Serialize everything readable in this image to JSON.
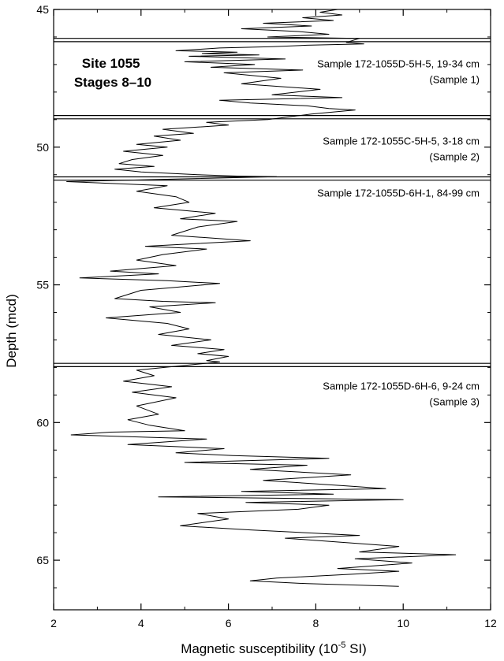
{
  "chart_data": {
    "type": "line",
    "title": "",
    "xlabel": "Magnetic susceptibility (10",
    "xlabel_sup": "-5",
    "xlabel_suffix": " SI)",
    "ylabel": "Depth (mcd)",
    "xlim": [
      2,
      12
    ],
    "ylim": [
      66.8,
      45
    ],
    "y_inverted": true,
    "grid": false,
    "xticks": [
      2,
      4,
      6,
      8,
      10,
      12
    ],
    "yticks": [
      45,
      50,
      55,
      60,
      65
    ],
    "xtick_labels": [
      "2",
      "4",
      "6",
      "8",
      "10",
      "12"
    ],
    "ytick_labels": [
      "45",
      "50",
      "55",
      "60",
      "65"
    ],
    "site_label": [
      "Site 1055",
      "Stages 8–10"
    ],
    "boundaries": [
      [
        46.05,
        46.17
      ],
      [
        48.85,
        48.97
      ],
      [
        51.08,
        51.2
      ],
      [
        57.85,
        57.97
      ]
    ],
    "annotations": [
      {
        "lines": [
          "Sample 172-1055D-5H-5, 19-34 cm",
          "(Sample 1)"
        ],
        "y": 47.1
      },
      {
        "lines": [
          "Sample 172-1055C-5H-5, 3-18 cm",
          "(Sample 2)"
        ],
        "y": 49.9
      },
      {
        "lines": [
          "Sample 172-1055D-6H-1, 84-99 cm"
        ],
        "y": 51.8
      },
      {
        "lines": [
          "Sample 172-1055D-6H-6, 9-24 cm",
          "(Sample 3)"
        ],
        "y": 58.8
      }
    ],
    "series": [
      {
        "values": [
          [
            8.5,
            45.0
          ],
          [
            8.1,
            45.1
          ],
          [
            8.6,
            45.2
          ],
          [
            7.7,
            45.3
          ],
          [
            8.4,
            45.4
          ],
          [
            6.8,
            45.5
          ],
          [
            7.9,
            45.6
          ],
          [
            6.3,
            45.7
          ],
          [
            7.6,
            45.8
          ],
          [
            8.3,
            45.9
          ],
          [
            6.9,
            46.0
          ],
          [
            9.0,
            46.05
          ],
          [
            8.7,
            46.2
          ],
          [
            9.1,
            46.25
          ],
          [
            7.8,
            46.3
          ],
          [
            7.0,
            46.35
          ],
          [
            5.8,
            46.4
          ],
          [
            4.8,
            46.5
          ],
          [
            6.2,
            46.55
          ],
          [
            5.4,
            46.6
          ],
          [
            6.7,
            46.65
          ],
          [
            5.1,
            46.7
          ],
          [
            7.3,
            46.8
          ],
          [
            5.0,
            46.9
          ],
          [
            6.6,
            47.0
          ],
          [
            5.6,
            47.1
          ],
          [
            7.7,
            47.2
          ],
          [
            5.9,
            47.3
          ],
          [
            7.2,
            47.5
          ],
          [
            6.3,
            47.7
          ],
          [
            8.1,
            47.9
          ],
          [
            7.0,
            48.1
          ],
          [
            8.6,
            48.2
          ],
          [
            5.8,
            48.3
          ],
          [
            6.5,
            48.4
          ],
          [
            7.8,
            48.5
          ],
          [
            8.3,
            48.6
          ],
          [
            8.9,
            48.65
          ],
          [
            7.9,
            48.8
          ],
          [
            6.9,
            49.0
          ],
          [
            5.5,
            49.1
          ],
          [
            6.0,
            49.2
          ],
          [
            4.5,
            49.35
          ],
          [
            5.2,
            49.5
          ],
          [
            4.3,
            49.6
          ],
          [
            4.9,
            49.75
          ],
          [
            3.9,
            49.9
          ],
          [
            4.6,
            50.0
          ],
          [
            3.6,
            50.15
          ],
          [
            4.5,
            50.3
          ],
          [
            3.8,
            50.45
          ],
          [
            3.5,
            50.6
          ],
          [
            4.3,
            50.7
          ],
          [
            3.4,
            50.8
          ],
          [
            4.0,
            50.9
          ],
          [
            5.3,
            51.0
          ],
          [
            6.2,
            51.05
          ],
          [
            7.1,
            51.07
          ],
          [
            2.3,
            51.25
          ],
          [
            4.6,
            51.4
          ],
          [
            3.9,
            51.6
          ],
          [
            4.8,
            51.8
          ],
          [
            5.1,
            52.0
          ],
          [
            4.3,
            52.2
          ],
          [
            5.7,
            52.4
          ],
          [
            4.9,
            52.6
          ],
          [
            6.2,
            52.7
          ],
          [
            5.3,
            52.9
          ],
          [
            4.7,
            53.2
          ],
          [
            6.5,
            53.4
          ],
          [
            4.1,
            53.6
          ],
          [
            5.5,
            53.7
          ],
          [
            4.5,
            53.9
          ],
          [
            3.9,
            54.1
          ],
          [
            4.8,
            54.3
          ],
          [
            3.3,
            54.5
          ],
          [
            4.4,
            54.6
          ],
          [
            2.6,
            54.75
          ],
          [
            4.6,
            54.85
          ],
          [
            5.8,
            54.95
          ],
          [
            4.0,
            55.2
          ],
          [
            3.4,
            55.5
          ],
          [
            4.5,
            55.6
          ],
          [
            5.7,
            55.65
          ],
          [
            4.2,
            55.8
          ],
          [
            4.9,
            56.0
          ],
          [
            3.2,
            56.2
          ],
          [
            4.6,
            56.4
          ],
          [
            5.1,
            56.6
          ],
          [
            4.4,
            56.8
          ],
          [
            5.6,
            57.0
          ],
          [
            4.7,
            57.2
          ],
          [
            5.9,
            57.35
          ],
          [
            5.3,
            57.5
          ],
          [
            6.0,
            57.6
          ],
          [
            5.5,
            57.75
          ],
          [
            5.8,
            57.8
          ],
          [
            3.9,
            58.1
          ],
          [
            4.3,
            58.3
          ],
          [
            3.6,
            58.5
          ],
          [
            4.7,
            58.7
          ],
          [
            3.8,
            58.9
          ],
          [
            4.8,
            59.1
          ],
          [
            3.9,
            59.4
          ],
          [
            4.4,
            59.7
          ],
          [
            3.7,
            59.9
          ],
          [
            4.2,
            60.1
          ],
          [
            5.0,
            60.3
          ],
          [
            3.3,
            60.35
          ],
          [
            2.4,
            60.45
          ],
          [
            5.5,
            60.6
          ],
          [
            3.7,
            60.8
          ],
          [
            5.9,
            60.95
          ],
          [
            4.8,
            61.1
          ],
          [
            6.1,
            61.2
          ],
          [
            8.3,
            61.3
          ],
          [
            5.0,
            61.45
          ],
          [
            7.8,
            61.55
          ],
          [
            6.5,
            61.7
          ],
          [
            8.8,
            61.9
          ],
          [
            6.8,
            62.1
          ],
          [
            8.7,
            62.3
          ],
          [
            9.6,
            62.4
          ],
          [
            6.3,
            62.5
          ],
          [
            8.4,
            62.6
          ],
          [
            4.4,
            62.7
          ],
          [
            10.0,
            62.8
          ],
          [
            6.4,
            62.9
          ],
          [
            8.3,
            63.0
          ],
          [
            7.6,
            63.15
          ],
          [
            5.3,
            63.3
          ],
          [
            6.0,
            63.5
          ],
          [
            4.9,
            63.75
          ],
          [
            6.5,
            63.9
          ],
          [
            9.0,
            64.1
          ],
          [
            7.3,
            64.2
          ],
          [
            9.9,
            64.5
          ],
          [
            9.0,
            64.7
          ],
          [
            11.2,
            64.8
          ],
          [
            8.9,
            64.95
          ],
          [
            10.2,
            65.1
          ],
          [
            8.5,
            65.3
          ],
          [
            9.9,
            65.4
          ],
          [
            8.9,
            65.5
          ],
          [
            7.1,
            65.65
          ],
          [
            6.5,
            65.75
          ],
          [
            7.8,
            65.85
          ],
          [
            9.9,
            65.95
          ]
        ]
      }
    ]
  }
}
